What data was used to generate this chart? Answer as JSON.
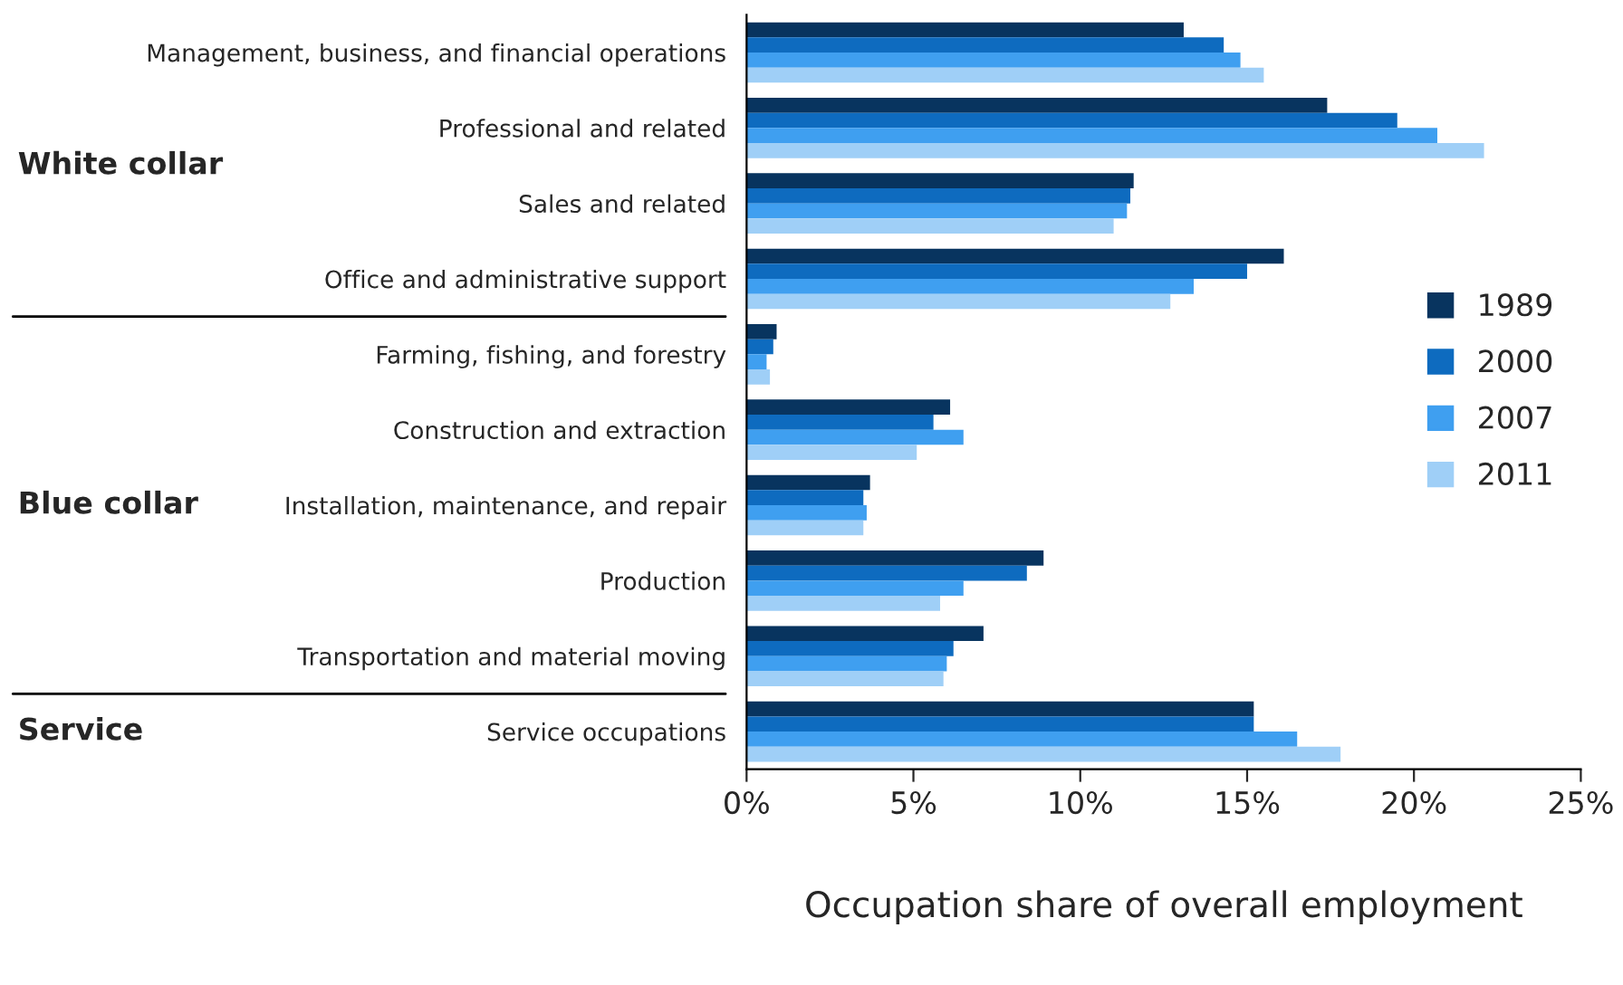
{
  "chart_data": {
    "type": "bar",
    "orientation": "horizontal",
    "xlabel": "Occupation share of overall employment",
    "categories": [
      "Management, business, and financial operations",
      "Professional and related",
      "Sales and related",
      "Office and administrative support",
      "Farming, fishing, and forestry",
      "Construction and extraction",
      "Installation, maintenance, and repair",
      "Production",
      "Transportation and material moving",
      "Service occupations"
    ],
    "series": [
      {
        "name": "1989",
        "color": "#08345f",
        "values": [
          13.1,
          17.4,
          11.6,
          16.1,
          0.9,
          6.1,
          3.7,
          8.9,
          7.1,
          15.2
        ]
      },
      {
        "name": "2000",
        "color": "#0e6bbf",
        "values": [
          14.3,
          19.5,
          11.5,
          15.0,
          0.8,
          5.6,
          3.5,
          8.4,
          6.2,
          15.2
        ]
      },
      {
        "name": "2007",
        "color": "#3f9ff0",
        "values": [
          14.8,
          20.7,
          11.4,
          13.4,
          0.6,
          6.5,
          3.6,
          6.5,
          6.0,
          16.5
        ]
      },
      {
        "name": "2011",
        "color": "#9fcff7",
        "values": [
          15.5,
          22.1,
          11.0,
          12.7,
          0.7,
          5.1,
          3.5,
          5.8,
          5.9,
          17.8
        ]
      }
    ],
    "xlim": [
      0,
      25
    ],
    "xticks": [
      {
        "value": 0,
        "label": "0%"
      },
      {
        "value": 5,
        "label": "5%"
      },
      {
        "value": 10,
        "label": "10%"
      },
      {
        "value": 15,
        "label": "15%"
      },
      {
        "value": 20,
        "label": "20%"
      },
      {
        "value": 25,
        "label": "25%"
      }
    ],
    "annotations": [
      "White collar",
      "Blue collar",
      "Service"
    ],
    "legend": "right",
    "grid": false
  }
}
